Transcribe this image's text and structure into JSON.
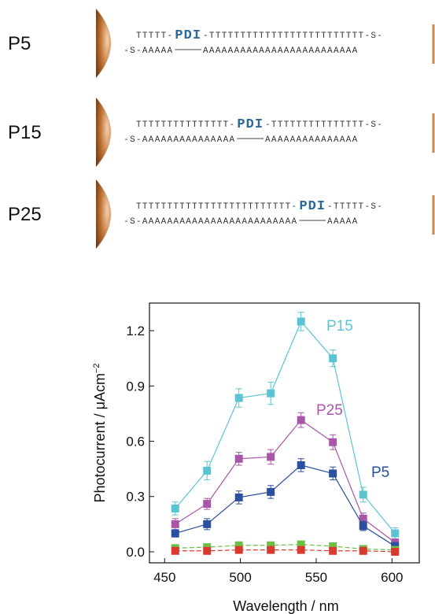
{
  "diagram": {
    "rows": [
      {
        "label": "P5",
        "top": [
          "TTTTT-",
          "PDI",
          "-TTTTTTTTTTTTTTTTTTTTTTTTT-S-"
        ],
        "bottom": [
          "-S-AAAAA",
          "AAAAAAAAAAAAAAAAAAAAAAAAA"
        ]
      },
      {
        "label": "P15",
        "top": [
          "TTTTTTTTTTTTTTT-",
          "PDI",
          "-TTTTTTTTTTTTTTT-S-"
        ],
        "bottom": [
          "-S-AAAAAAAAAAAAAAA",
          "AAAAAAAAAAAAAAA"
        ]
      },
      {
        "label": "P25",
        "top": [
          "TTTTTTTTTTTTTTTTTTTTTTTTT-",
          "PDI",
          "-TTTTT-S-"
        ],
        "bottom": [
          "-S-AAAAAAAAAAAAAAAAAAAAAAAAA",
          "AAAAA"
        ]
      }
    ]
  },
  "chart_data": {
    "type": "line",
    "xlabel": "Wavelength / nm",
    "ylabel": "Photocurrent / μAcm",
    "ylabel_superscript": "−2",
    "x": [
      457,
      478,
      499,
      520,
      540,
      561,
      581,
      602
    ],
    "xlim": [
      440,
      618
    ],
    "ylim": [
      -0.06,
      1.35
    ],
    "xticks": [
      450,
      500,
      550,
      600
    ],
    "yticks": [
      {
        "value": 0,
        "label": "0.0"
      },
      0.3,
      0.6,
      0.9,
      1.2
    ],
    "series": [
      {
        "name": "P15",
        "color": "#5bc4d2",
        "dashed": false,
        "values": [
          0.235,
          0.44,
          0.835,
          0.86,
          1.25,
          1.05,
          0.31,
          0.1
        ],
        "errors": [
          0.035,
          0.05,
          0.05,
          0.06,
          0.05,
          0.045,
          0.04,
          0.03
        ]
      },
      {
        "name": "P25",
        "color": "#a955a8",
        "dashed": false,
        "values": [
          0.15,
          0.26,
          0.505,
          0.515,
          0.715,
          0.595,
          0.18,
          0.05
        ],
        "errors": [
          0.03,
          0.03,
          0.035,
          0.04,
          0.04,
          0.04,
          0.03,
          0.02
        ]
      },
      {
        "name": "P5",
        "color": "#2a4f9e",
        "dashed": false,
        "values": [
          0.1,
          0.15,
          0.295,
          0.325,
          0.47,
          0.425,
          0.14,
          0.03
        ],
        "errors": [
          0.02,
          0.03,
          0.035,
          0.035,
          0.035,
          0.035,
          0.025,
          0.02
        ]
      },
      {
        "color": "#6cbf44",
        "dashed": true,
        "values": [
          0.02,
          0.025,
          0.035,
          0.035,
          0.04,
          0.03,
          0.015,
          0.01
        ],
        "errors": [
          0.01,
          0.01,
          0.01,
          0.01,
          0.01,
          0.01,
          0.01,
          0.01
        ]
      },
      {
        "color": "#d93a2e",
        "dashed": true,
        "values": [
          0.005,
          0.005,
          0.01,
          0.01,
          0.01,
          0.005,
          0.005,
          0.0
        ],
        "errors": [
          0.005,
          0.005,
          0.005,
          0.005,
          0.005,
          0.005,
          0.005,
          0.005
        ]
      }
    ]
  }
}
